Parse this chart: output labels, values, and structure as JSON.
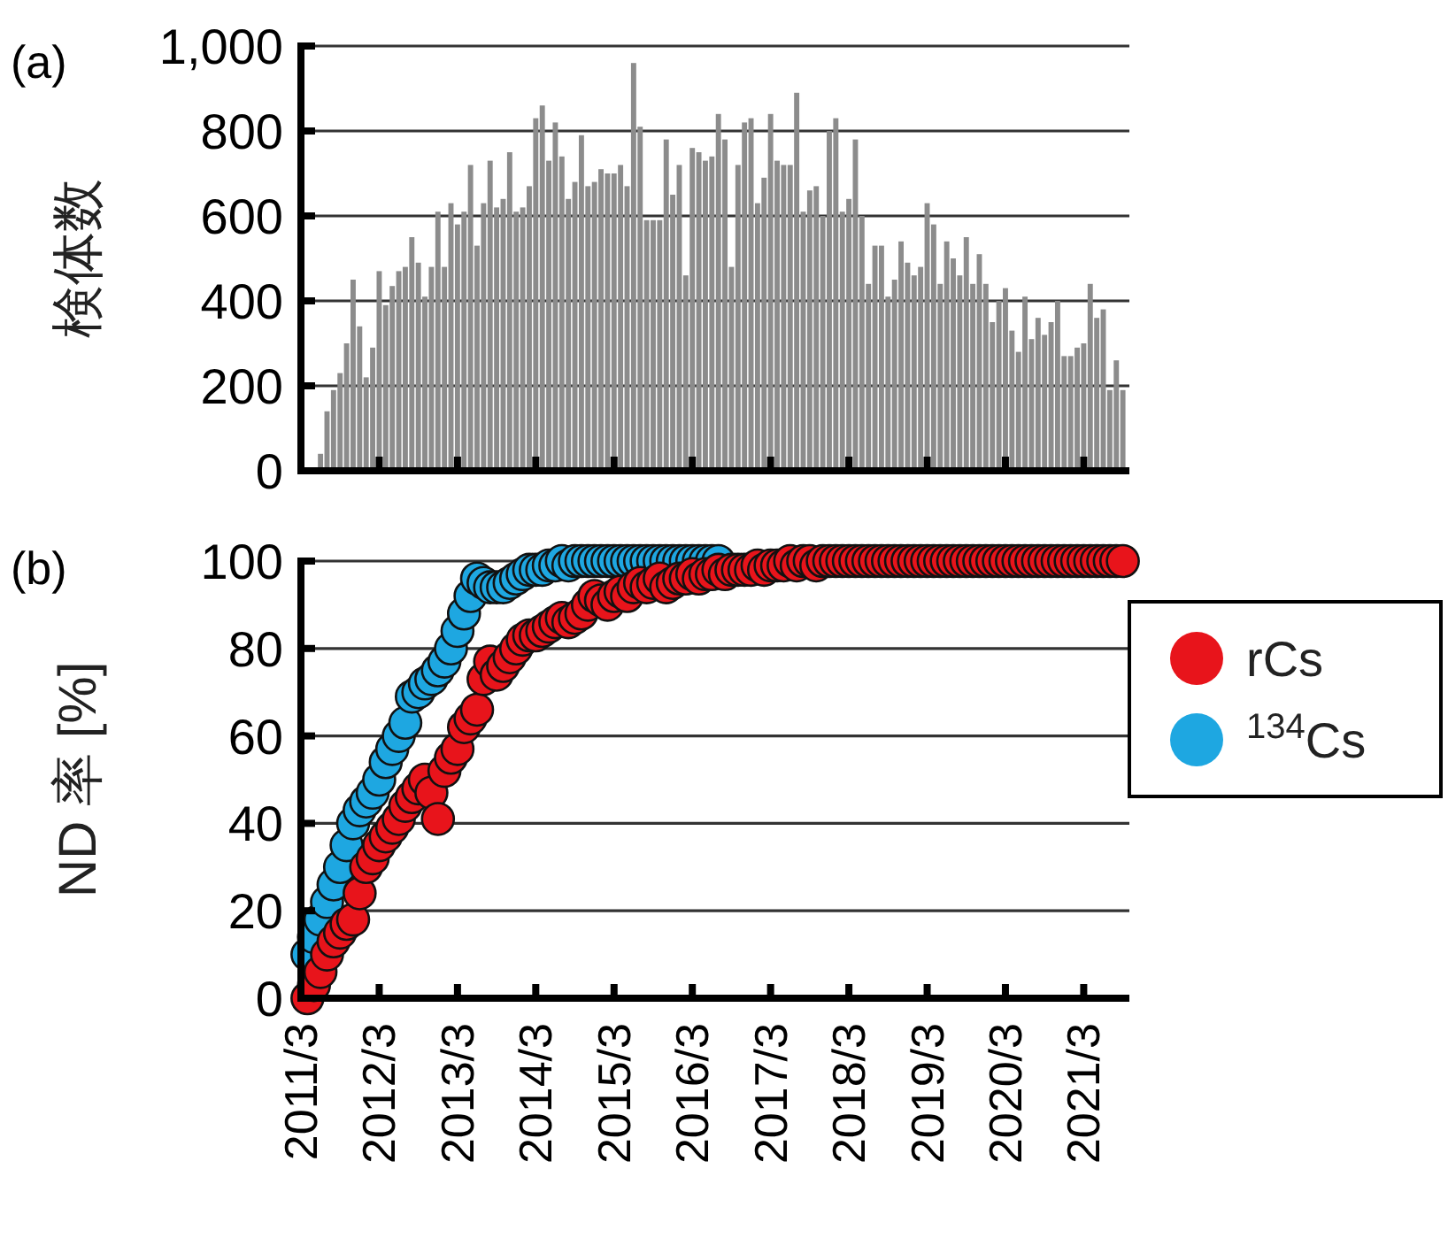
{
  "chart_data": [
    {
      "type": "bar",
      "ylabel": "検体数",
      "annotations": [
        "(a)"
      ],
      "color": "#8c8c8c",
      "grid": "y",
      "tick_labels": "y",
      "xlim": [
        "2011-03",
        "2021-10"
      ],
      "xticks": [
        {
          "value": "2012-03",
          "label": null
        },
        {
          "value": "2013-03",
          "label": null
        },
        {
          "value": "2014-03",
          "label": null
        },
        {
          "value": "2015-03",
          "label": null
        },
        {
          "value": "2016-03",
          "label": null
        },
        {
          "value": "2017-03",
          "label": null
        },
        {
          "value": "2018-03",
          "label": null
        },
        {
          "value": "2019-03",
          "label": null
        },
        {
          "value": "2020-03",
          "label": null
        },
        {
          "value": "2021-03",
          "label": null
        }
      ],
      "ylim": [
        0,
        1000
      ],
      "yticks": [
        0,
        200,
        400,
        600,
        800,
        {
          "value": 1000,
          "label": "1,000"
        }
      ],
      "x": [
        "2011-06",
        "2011-07",
        "2011-08",
        "2011-09",
        "2011-10",
        "2011-11",
        "2011-12",
        "2012-01",
        "2012-02",
        "2012-03",
        "2012-04",
        "2012-05",
        "2012-06",
        "2012-07",
        "2012-08",
        "2012-09",
        "2012-10",
        "2012-11",
        "2012-12",
        "2013-01",
        "2013-02",
        "2013-03",
        "2013-04",
        "2013-05",
        "2013-06",
        "2013-07",
        "2013-08",
        "2013-09",
        "2013-10",
        "2013-11",
        "2013-12",
        "2014-01",
        "2014-02",
        "2014-03",
        "2014-04",
        "2014-05",
        "2014-06",
        "2014-07",
        "2014-08",
        "2014-09",
        "2014-10",
        "2014-11",
        "2014-12",
        "2015-01",
        "2015-02",
        "2015-03",
        "2015-04",
        "2015-05",
        "2015-06",
        "2015-07",
        "2015-08",
        "2015-09",
        "2015-10",
        "2015-11",
        "2015-12",
        "2016-01",
        "2016-02",
        "2016-03",
        "2016-04",
        "2016-05",
        "2016-06",
        "2016-07",
        "2016-08",
        "2016-09",
        "2016-10",
        "2016-11",
        "2016-12",
        "2017-01",
        "2017-02",
        "2017-03",
        "2017-04",
        "2017-05",
        "2017-06",
        "2017-07",
        "2017-08",
        "2017-09",
        "2017-10",
        "2017-11",
        "2017-12",
        "2018-01",
        "2018-02",
        "2018-03",
        "2018-04",
        "2018-05",
        "2018-06",
        "2018-07",
        "2018-08",
        "2018-09",
        "2018-10",
        "2018-11",
        "2018-12",
        "2019-01",
        "2019-02",
        "2019-03",
        "2019-04",
        "2019-05",
        "2019-06",
        "2019-07",
        "2019-08",
        "2019-09",
        "2019-10",
        "2019-11",
        "2019-12",
        "2020-01",
        "2020-02",
        "2020-03",
        "2020-04",
        "2020-05",
        "2020-06",
        "2020-07",
        "2020-08",
        "2020-09",
        "2020-10",
        "2020-11",
        "2020-12",
        "2021-01",
        "2021-02",
        "2021-03",
        "2021-04",
        "2021-05",
        "2021-06",
        "2021-07",
        "2021-08",
        "2021-09"
      ],
      "values": [
        40,
        140,
        190,
        230,
        300,
        450,
        340,
        220,
        290,
        470,
        390,
        435,
        470,
        480,
        550,
        490,
        410,
        480,
        610,
        480,
        630,
        580,
        610,
        720,
        530,
        630,
        730,
        620,
        640,
        750,
        610,
        620,
        670,
        830,
        860,
        730,
        820,
        740,
        640,
        680,
        790,
        670,
        680,
        710,
        700,
        700,
        720,
        670,
        960,
        810,
        590,
        590,
        590,
        780,
        650,
        720,
        460,
        760,
        750,
        730,
        740,
        840,
        780,
        480,
        720,
        820,
        830,
        630,
        690,
        840,
        730,
        720,
        720,
        890,
        610,
        660,
        670,
        600,
        800,
        830,
        610,
        640,
        780,
        600,
        440,
        530,
        530,
        410,
        450,
        540,
        490,
        460,
        480,
        630,
        580,
        440,
        540,
        500,
        460,
        550,
        440,
        510,
        440,
        350,
        400,
        430,
        330,
        280,
        410,
        310,
        360,
        320,
        350,
        400,
        270,
        270,
        290,
        300,
        440,
        360,
        380,
        190,
        260,
        190
      ]
    },
    {
      "type": "scatter",
      "ylabel": "ND 率 [%]",
      "annotations": [
        "(b)"
      ],
      "grid": "y",
      "marker": "circle",
      "legend": "right",
      "xlim": [
        "2011-03",
        "2021-10"
      ],
      "xticks": [
        {
          "value": "2011-03",
          "label": "2011/3"
        },
        {
          "value": "2012-03",
          "label": "2012/3"
        },
        {
          "value": "2013-03",
          "label": "2013/3"
        },
        {
          "value": "2014-03",
          "label": "2014/3"
        },
        {
          "value": "2015-03",
          "label": "2015/3"
        },
        {
          "value": "2016-03",
          "label": "2016/3"
        },
        {
          "value": "2017-03",
          "label": "2017/3"
        },
        {
          "value": "2018-03",
          "label": "2018/3"
        },
        {
          "value": "2019-03",
          "label": "2019/3"
        },
        {
          "value": "2020-03",
          "label": "2020/3"
        },
        {
          "value": "2021-03",
          "label": "2021/3"
        }
      ],
      "ylim": [
        0,
        100
      ],
      "yticks": [
        0,
        20,
        40,
        60,
        80,
        100
      ],
      "series": [
        {
          "name": "rCs",
          "color": "#e8141b",
          "x": [
            "2011-04",
            "2011-05",
            "2011-06",
            "2011-07",
            "2011-08",
            "2011-09",
            "2011-10",
            "2011-11",
            "2011-12",
            "2012-01",
            "2012-02",
            "2012-03",
            "2012-04",
            "2012-05",
            "2012-06",
            "2012-07",
            "2012-08",
            "2012-09",
            "2012-10",
            "2012-11",
            "2012-12",
            "2013-01",
            "2013-02",
            "2013-03",
            "2013-04",
            "2013-05",
            "2013-06",
            "2013-07",
            "2013-08",
            "2013-09",
            "2013-10",
            "2013-11",
            "2013-12",
            "2014-01",
            "2014-02",
            "2014-03",
            "2014-04",
            "2014-05",
            "2014-06",
            "2014-07",
            "2014-08",
            "2014-09",
            "2014-10",
            "2014-11",
            "2014-12",
            "2015-01",
            "2015-02",
            "2015-03",
            "2015-04",
            "2015-05",
            "2015-06",
            "2015-07",
            "2015-08",
            "2015-09",
            "2015-10",
            "2015-11",
            "2015-12",
            "2016-01",
            "2016-02",
            "2016-03",
            "2016-04",
            "2016-05",
            "2016-06",
            "2016-07",
            "2016-08",
            "2016-09",
            "2016-10",
            "2016-11",
            "2016-12",
            "2017-01",
            "2017-02",
            "2017-03",
            "2017-04",
            "2017-05",
            "2017-06",
            "2017-07",
            "2017-08",
            "2017-09",
            "2017-10",
            "2017-11",
            "2017-12",
            "2018-01",
            "2018-02",
            "2018-03",
            "2018-04",
            "2018-05",
            "2018-06",
            "2018-07",
            "2018-08",
            "2018-09",
            "2018-10",
            "2018-11",
            "2018-12",
            "2019-01",
            "2019-02",
            "2019-03",
            "2019-04",
            "2019-05",
            "2019-06",
            "2019-07",
            "2019-08",
            "2019-09",
            "2019-10",
            "2019-11",
            "2019-12",
            "2020-01",
            "2020-02",
            "2020-03",
            "2020-04",
            "2020-05",
            "2020-06",
            "2020-07",
            "2020-08",
            "2020-09",
            "2020-10",
            "2020-11",
            "2020-12",
            "2021-01",
            "2021-02",
            "2021-03",
            "2021-04",
            "2021-05",
            "2021-06",
            "2021-07",
            "2021-08",
            "2021-09"
          ],
          "values": [
            0,
            3,
            6,
            10,
            13,
            15,
            17,
            18,
            24,
            30,
            32,
            35,
            37,
            39,
            41,
            44,
            46,
            48,
            50,
            47,
            41,
            52,
            55,
            57,
            62,
            64,
            66,
            73,
            77,
            74,
            76,
            78,
            80,
            82,
            83,
            83,
            84,
            85,
            86,
            87,
            86,
            87,
            88,
            90,
            92,
            91,
            90,
            92,
            93,
            92,
            94,
            95,
            94,
            95,
            96,
            94,
            95,
            96,
            96,
            97,
            96,
            97,
            97,
            98,
            97,
            98,
            98,
            98,
            98,
            99,
            98,
            99,
            99,
            99,
            100,
            99,
            100,
            100,
            99,
            100,
            100,
            100,
            100,
            100,
            100,
            100,
            100,
            100,
            100,
            100,
            100,
            100,
            100,
            100,
            100,
            100,
            100,
            100,
            100,
            100,
            100,
            100,
            100,
            100,
            100,
            100,
            100,
            100,
            100,
            100,
            100,
            100,
            100,
            100,
            100,
            100,
            100,
            100,
            100,
            100,
            100,
            100,
            100,
            100,
            100,
            100
          ]
        },
        {
          "name": "$^{134}$Cs",
          "color": "#1ea7e1",
          "x": [
            "2011-04",
            "2011-05",
            "2011-06",
            "2011-07",
            "2011-08",
            "2011-09",
            "2011-10",
            "2011-11",
            "2011-12",
            "2012-01",
            "2012-02",
            "2012-03",
            "2012-04",
            "2012-05",
            "2012-06",
            "2012-07",
            "2012-08",
            "2012-09",
            "2012-10",
            "2012-11",
            "2012-12",
            "2013-01",
            "2013-02",
            "2013-03",
            "2013-04",
            "2013-05",
            "2013-06",
            "2013-07",
            "2013-08",
            "2013-09",
            "2013-10",
            "2013-11",
            "2013-12",
            "2014-01",
            "2014-02",
            "2014-03",
            "2014-04",
            "2014-05",
            "2014-06",
            "2014-07",
            "2014-08",
            "2014-09",
            "2014-10",
            "2014-11",
            "2014-12",
            "2015-01",
            "2015-02",
            "2015-03",
            "2015-04",
            "2015-05",
            "2015-06",
            "2015-07",
            "2015-08",
            "2015-09",
            "2015-10",
            "2015-11",
            "2015-12",
            "2016-01",
            "2016-02",
            "2016-03",
            "2016-04",
            "2016-05",
            "2016-06",
            "2016-07"
          ],
          "values": [
            10,
            14,
            18,
            22,
            26,
            30,
            35,
            40,
            43,
            45,
            47,
            50,
            54,
            57,
            60,
            63,
            69,
            70,
            72,
            73,
            75,
            77,
            80,
            84,
            88,
            92,
            96,
            95,
            94,
            94,
            94,
            95,
            96,
            97,
            98,
            98,
            98,
            99,
            99,
            100,
            99,
            100,
            100,
            100,
            100,
            100,
            100,
            100,
            100,
            100,
            100,
            100,
            100,
            100,
            100,
            100,
            100,
            100,
            100,
            100,
            100,
            100,
            100,
            100
          ]
        }
      ]
    }
  ]
}
